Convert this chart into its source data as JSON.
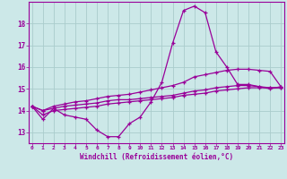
{
  "xlabel": "Windchill (Refroidissement éolien,°C)",
  "background_color": "#cce8e8",
  "grid_color": "#aacccc",
  "line_color": "#990099",
  "x_ticks": [
    0,
    1,
    2,
    3,
    4,
    5,
    6,
    7,
    8,
    9,
    10,
    11,
    12,
    13,
    14,
    15,
    16,
    17,
    18,
    19,
    20,
    21,
    22,
    23
  ],
  "y_ticks": [
    13,
    14,
    15,
    16,
    17,
    18
  ],
  "ylim": [
    12.5,
    19.0
  ],
  "xlim": [
    -0.3,
    23.3
  ],
  "series": [
    [
      14.2,
      13.6,
      14.1,
      13.8,
      13.7,
      13.6,
      13.1,
      12.8,
      12.8,
      13.4,
      13.7,
      14.4,
      15.3,
      17.1,
      18.6,
      18.8,
      18.5,
      16.7,
      16.0,
      15.2,
      15.2,
      15.1,
      15.0,
      15.1
    ],
    [
      14.2,
      14.0,
      14.2,
      14.3,
      14.4,
      14.45,
      14.55,
      14.65,
      14.7,
      14.75,
      14.85,
      14.95,
      15.05,
      15.15,
      15.3,
      15.55,
      15.65,
      15.75,
      15.85,
      15.9,
      15.9,
      15.85,
      15.8,
      15.1
    ],
    [
      14.2,
      14.0,
      14.1,
      14.2,
      14.25,
      14.3,
      14.35,
      14.45,
      14.5,
      14.5,
      14.55,
      14.6,
      14.65,
      14.7,
      14.8,
      14.9,
      14.95,
      15.05,
      15.1,
      15.15,
      15.15,
      15.1,
      15.05,
      15.05
    ],
    [
      14.2,
      13.8,
      14.0,
      14.05,
      14.1,
      14.15,
      14.2,
      14.3,
      14.35,
      14.4,
      14.45,
      14.5,
      14.55,
      14.6,
      14.7,
      14.75,
      14.8,
      14.9,
      14.95,
      15.0,
      15.05,
      15.05,
      15.05,
      15.05
    ]
  ]
}
